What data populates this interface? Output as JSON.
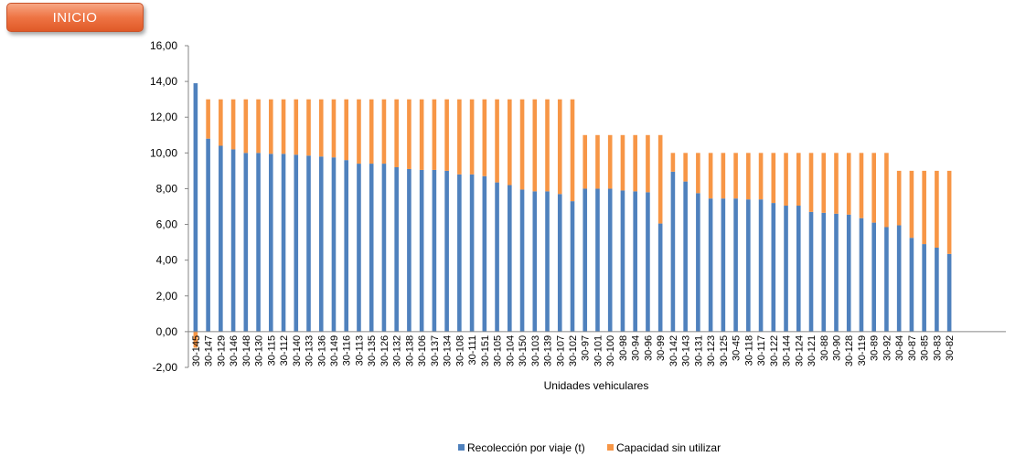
{
  "header": {
    "inicio_label": "INICIO"
  },
  "colors": {
    "recoleccion": "#4f81bd",
    "capacidad": "#f79646",
    "axis": "#868686",
    "button": "#ee7444"
  },
  "chart_data": {
    "type": "bar",
    "stacked": true,
    "title": "",
    "xlabel": "Unidades vehiculares",
    "ylabel": "",
    "ylim": [
      -2,
      16
    ],
    "yticks": [
      "-2,00",
      "0,00",
      "2,00",
      "4,00",
      "6,00",
      "8,00",
      "10,00",
      "12,00",
      "14,00",
      "16,00"
    ],
    "grid": false,
    "legend_position": "bottom",
    "categories": [
      "30-145",
      "30-147",
      "30-129",
      "30-146",
      "30-148",
      "30-130",
      "30-115",
      "30-112",
      "30-140",
      "30-133",
      "30-136",
      "30-149",
      "30-116",
      "30-113",
      "30-135",
      "30-126",
      "30-132",
      "30-138",
      "30-106",
      "30-137",
      "30-134",
      "30-108",
      "30-111",
      "30-151",
      "30-105",
      "30-104",
      "30-150",
      "30-103",
      "30-139",
      "30-107",
      "30-102",
      "30-97",
      "30-101",
      "30-100",
      "30-98",
      "30-94",
      "30-96",
      "30-99",
      "30-142",
      "30-143",
      "30-131",
      "30-123",
      "30-125",
      "30-45",
      "30-118",
      "30-117",
      "30-122",
      "30-144",
      "30-124",
      "30-121",
      "30-88",
      "30-90",
      "30-128",
      "30-119",
      "30-89",
      "30-92",
      "30-84",
      "30-87",
      "30-85",
      "30-83",
      "30-82"
    ],
    "series": [
      {
        "name": "Recolección por viaje (t)",
        "color": "#4f81bd",
        "values": [
          13.9,
          10.8,
          10.4,
          10.2,
          10.0,
          10.0,
          9.95,
          9.95,
          9.9,
          9.85,
          9.8,
          9.75,
          9.6,
          9.4,
          9.4,
          9.4,
          9.2,
          9.1,
          9.05,
          9.05,
          9.0,
          8.8,
          8.8,
          8.7,
          8.35,
          8.2,
          7.95,
          7.85,
          7.85,
          7.7,
          7.3,
          8.0,
          8.0,
          8.0,
          7.9,
          7.85,
          7.8,
          6.05,
          8.95,
          8.4,
          7.75,
          7.45,
          7.45,
          7.45,
          7.4,
          7.4,
          7.2,
          7.05,
          7.05,
          6.7,
          6.65,
          6.6,
          6.55,
          6.35,
          6.1,
          5.85,
          5.95,
          5.25,
          4.9,
          4.7,
          4.35
        ]
      },
      {
        "name": "Capacidad sin utilizar",
        "color": "#f79646",
        "values": [
          -0.9,
          2.2,
          2.6,
          2.8,
          3.0,
          3.0,
          3.05,
          3.05,
          3.1,
          3.15,
          3.2,
          3.25,
          3.4,
          3.6,
          3.6,
          3.6,
          3.8,
          3.9,
          3.95,
          3.95,
          4.0,
          4.2,
          4.2,
          4.3,
          4.65,
          4.8,
          5.05,
          5.15,
          5.15,
          5.3,
          5.7,
          3.0,
          3.0,
          3.0,
          3.1,
          3.15,
          3.2,
          4.95,
          1.05,
          1.6,
          2.25,
          2.55,
          2.55,
          2.55,
          2.6,
          2.6,
          2.8,
          2.95,
          2.95,
          3.3,
          3.35,
          3.4,
          3.45,
          3.65,
          3.9,
          4.15,
          3.05,
          3.75,
          4.1,
          4.3,
          4.65
        ]
      }
    ]
  }
}
